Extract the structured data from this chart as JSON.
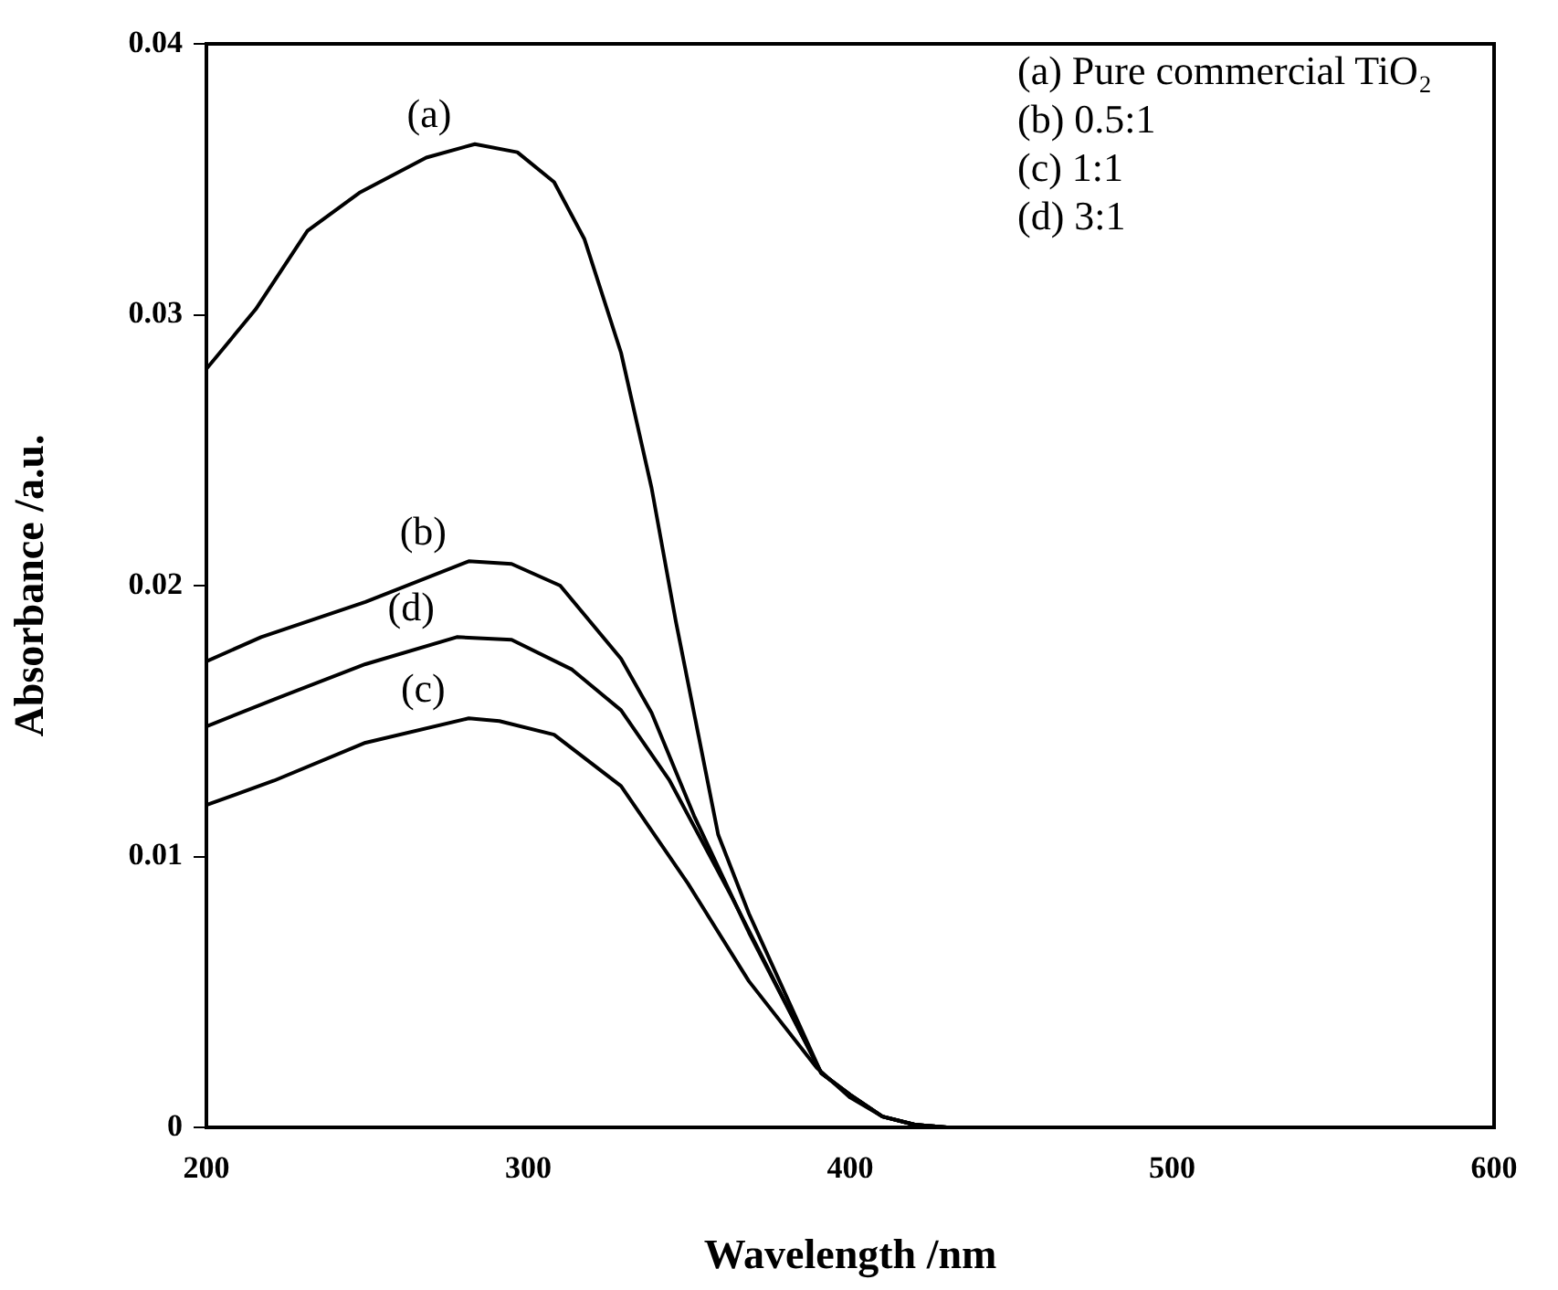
{
  "chart_data": {
    "type": "line",
    "xlabel": "Wavelength /nm",
    "ylabel": "Absorbance /a.u.",
    "xlim": [
      200,
      600
    ],
    "xticks": [
      200,
      300,
      400,
      500,
      600
    ],
    "ylim": [
      0,
      0.04
    ],
    "yticks": [
      0,
      0.01,
      0.02,
      0.03,
      0.04
    ],
    "grid": false,
    "legend": false,
    "marker": "none",
    "line_style": "solid",
    "annotations": [
      "(a) Pure commercial TiO₂",
      "(b) 0.5:1",
      "(c) 1:1",
      "(d) 3:1"
    ],
    "series": [
      {
        "name": "(a)",
        "color": "#000000",
        "x": [
          200,
          215.3,
          231.4,
          247.5,
          268.3,
          283.4,
          296.6,
          308,
          317.4,
          328.8,
          338.3,
          345.8,
          359,
          368.5,
          391,
          400,
          410,
          420,
          430,
          600
        ],
        "values": [
          0.028,
          0.0302,
          0.0331,
          0.0345,
          0.0358,
          0.0363,
          0.036,
          0.0349,
          0.0328,
          0.0286,
          0.0236,
          0.0187,
          0.0108,
          0.0079,
          0.002,
          0.0012,
          0.0004,
          0.0001,
          0,
          0
        ]
      },
      {
        "name": "(b)",
        "color": "#000000",
        "x": [
          200,
          217,
          249.4,
          281.5,
          294.8,
          309.9,
          328.8,
          338.3,
          351.5,
          368.5,
          391,
          400,
          410,
          420,
          430,
          600
        ],
        "values": [
          0.0172,
          0.0181,
          0.0194,
          0.0209,
          0.0208,
          0.02,
          0.0173,
          0.0153,
          0.0115,
          0.0072,
          0.002,
          0.0012,
          0.0004,
          0.0001,
          0,
          0
        ]
      },
      {
        "name": "(c)",
        "color": "#000000",
        "x": [
          200,
          221,
          249.4,
          281.5,
          291,
          308,
          328.8,
          349.6,
          368.5,
          389.6,
          400,
          410,
          420,
          430,
          600
        ],
        "values": [
          0.0119,
          0.0128,
          0.0142,
          0.0151,
          0.015,
          0.0145,
          0.0126,
          0.009,
          0.0054,
          0.0022,
          0.0011,
          0.0004,
          0.0001,
          0,
          0
        ]
      },
      {
        "name": "(d)",
        "color": "#000000",
        "x": [
          200,
          221,
          249.4,
          277.8,
          294.8,
          313.6,
          328.8,
          343.9,
          362.8,
          391,
          400,
          410,
          420,
          430,
          600
        ],
        "values": [
          0.0148,
          0.0158,
          0.0171,
          0.0181,
          0.018,
          0.0169,
          0.0154,
          0.0128,
          0.0086,
          0.002,
          0.0012,
          0.0004,
          0.0001,
          0,
          0
        ]
      }
    ]
  }
}
